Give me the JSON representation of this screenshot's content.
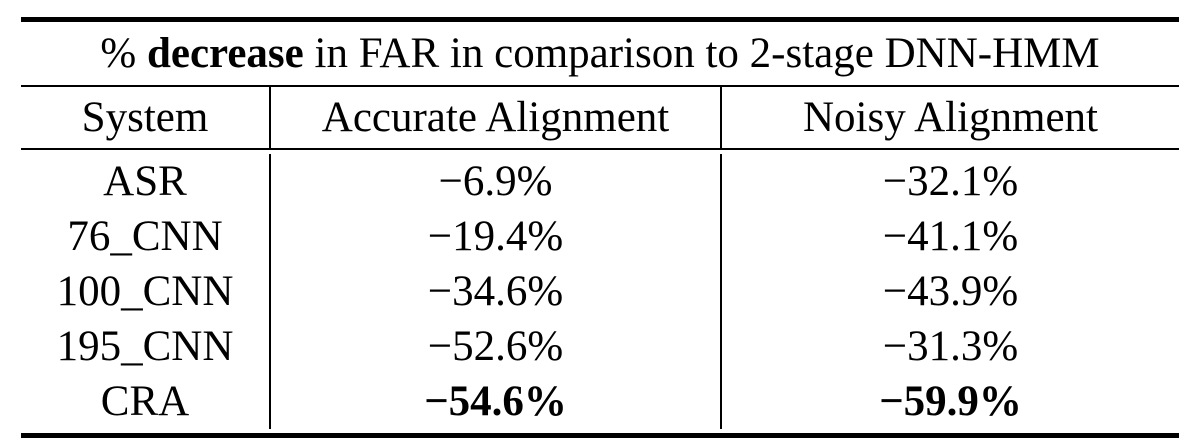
{
  "caption": {
    "prefix": "%",
    "bold_word": "decrease",
    "rest": "in FAR in comparison to 2-stage DNN-HMM"
  },
  "columns": [
    "System",
    "Accurate Alignment",
    "Noisy Alignment"
  ],
  "rows": [
    {
      "system": "ASR",
      "accurate": "−6.9%",
      "noisy": "−32.1%",
      "bold_accurate": false,
      "bold_noisy": false
    },
    {
      "system": "76_CNN",
      "accurate": "−19.4%",
      "noisy": "−41.1%",
      "bold_accurate": false,
      "bold_noisy": false
    },
    {
      "system": "100_CNN",
      "accurate": "−34.6%",
      "noisy": "−43.9%",
      "bold_accurate": false,
      "bold_noisy": false
    },
    {
      "system": "195_CNN",
      "accurate": "−52.6%",
      "noisy": "−31.3%",
      "bold_accurate": false,
      "bold_noisy": false
    },
    {
      "system": "CRA",
      "accurate": "−54.6%",
      "noisy": "−59.9%",
      "bold_accurate": true,
      "bold_noisy": true
    }
  ]
}
